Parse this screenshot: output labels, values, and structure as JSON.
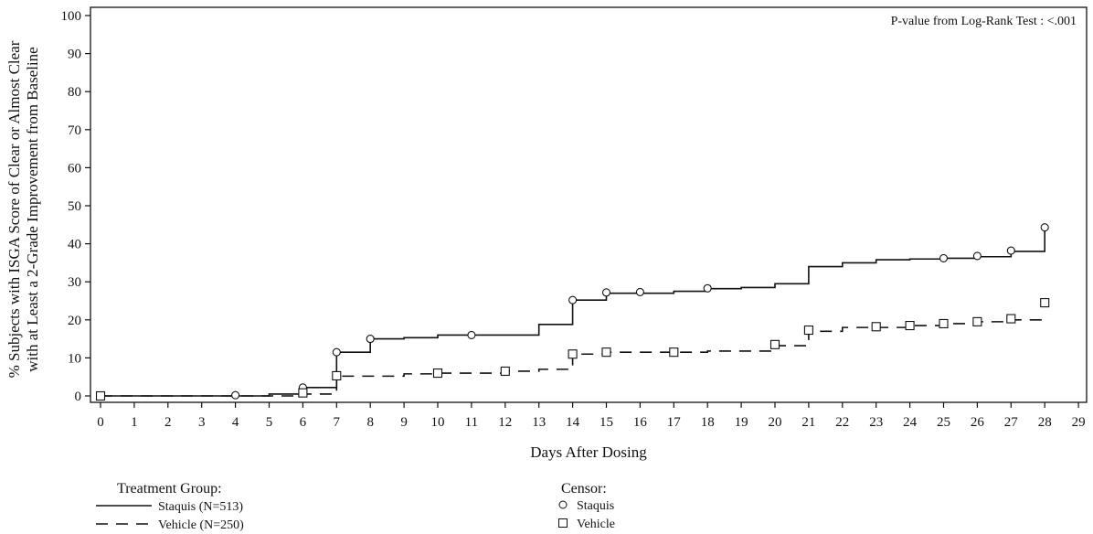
{
  "chart_data": {
    "type": "line",
    "step": true,
    "xlabel": "Days After Dosing",
    "ylabel_line1": "% Subjects with ISGA Score of Clear or Almost Clear",
    "ylabel_line2": "with at Least a 2-Grade Improvement from Baseline",
    "xlim": [
      0,
      29
    ],
    "ylim": [
      0,
      100
    ],
    "x_ticks": [
      0,
      1,
      2,
      3,
      4,
      5,
      6,
      7,
      8,
      9,
      10,
      11,
      12,
      13,
      14,
      15,
      16,
      17,
      18,
      19,
      20,
      21,
      22,
      23,
      24,
      25,
      26,
      27,
      28,
      29
    ],
    "x_tick_labels": [
      "0",
      "1",
      "2",
      "3",
      "4",
      "5",
      "6",
      "7",
      "8",
      "9",
      "10",
      "11",
      "12",
      "13",
      "14",
      "15",
      "16",
      "17",
      "18",
      "19",
      "20",
      "21",
      "22",
      "23",
      "24",
      "25",
      "26",
      "27",
      "28",
      "29"
    ],
    "y_ticks": [
      0,
      10,
      20,
      30,
      40,
      50,
      60,
      70,
      80,
      90,
      100
    ],
    "y_tick_labels": [
      "0",
      "10",
      "20",
      "30",
      "40",
      "50",
      "60",
      "70",
      "80",
      "90",
      "100"
    ],
    "annotation": "P-value from Log-Rank Test :  <.001",
    "series": [
      {
        "name": "Staquis (N=513)",
        "line_style": "solid",
        "color": "#111111",
        "steps": [
          [
            0,
            0
          ],
          [
            5,
            0.3
          ],
          [
            5,
            0.5
          ],
          [
            6,
            1.3
          ],
          [
            6,
            2.2
          ],
          [
            7,
            2.2
          ],
          [
            7,
            11.5
          ],
          [
            8,
            11.5
          ],
          [
            8,
            15.0
          ],
          [
            9,
            15.3
          ],
          [
            10,
            15.3
          ],
          [
            10,
            16.0
          ],
          [
            13,
            16.0
          ],
          [
            13,
            18.8
          ],
          [
            14,
            18.8
          ],
          [
            14,
            25.2
          ],
          [
            15,
            25.2
          ],
          [
            15,
            27.0
          ],
          [
            16,
            27.0
          ],
          [
            17,
            27.5
          ],
          [
            18,
            28.2
          ],
          [
            19,
            28.5
          ],
          [
            20,
            28.5
          ],
          [
            20,
            29.5
          ],
          [
            21,
            29.5
          ],
          [
            21,
            34.0
          ],
          [
            22,
            34.0
          ],
          [
            22,
            35.0
          ],
          [
            23,
            35.0
          ],
          [
            23,
            35.8
          ],
          [
            24,
            36.0
          ],
          [
            25,
            36.0
          ],
          [
            25,
            36.2
          ],
          [
            26,
            36.6
          ],
          [
            27,
            36.8
          ],
          [
            27,
            38.0
          ],
          [
            28,
            38.0
          ],
          [
            28,
            44.3
          ]
        ],
        "censor_marker": "circle",
        "censors": [
          [
            0,
            0
          ],
          [
            4,
            0.2
          ],
          [
            6,
            2.2
          ],
          [
            7,
            11.5
          ],
          [
            8,
            15.0
          ],
          [
            11,
            16.0
          ],
          [
            14,
            25.2
          ],
          [
            15,
            27.2
          ],
          [
            16,
            27.3
          ],
          [
            18,
            28.3
          ],
          [
            25,
            36.2
          ],
          [
            26,
            36.8
          ],
          [
            27,
            38.2
          ],
          [
            28,
            44.3
          ]
        ]
      },
      {
        "name": "Vehicle (N=250)",
        "line_style": "dashed",
        "color": "#111111",
        "steps": [
          [
            0,
            0
          ],
          [
            6,
            0.5
          ],
          [
            7,
            0.8
          ],
          [
            7,
            5.2
          ],
          [
            8,
            5.2
          ],
          [
            9,
            5.8
          ],
          [
            10,
            6.0
          ],
          [
            12,
            6.0
          ],
          [
            12,
            6.5
          ],
          [
            13,
            7.0
          ],
          [
            14,
            8.0
          ],
          [
            14,
            11.0
          ],
          [
            15,
            11.0
          ],
          [
            15,
            11.5
          ],
          [
            17,
            11.5
          ],
          [
            18,
            11.8
          ],
          [
            20,
            11.8
          ],
          [
            20,
            13.2
          ],
          [
            21,
            13.2
          ],
          [
            21,
            17.0
          ],
          [
            22,
            17.0
          ],
          [
            22,
            18.0
          ],
          [
            23,
            18.0
          ],
          [
            24,
            18.5
          ],
          [
            25,
            19.0
          ],
          [
            26,
            19.5
          ],
          [
            27,
            20.0
          ],
          [
            28,
            20.5
          ]
        ],
        "censor_marker": "square",
        "censors": [
          [
            0,
            0
          ],
          [
            6,
            0.8
          ],
          [
            7,
            5.3
          ],
          [
            10,
            6.0
          ],
          [
            12,
            6.5
          ],
          [
            14,
            11.0
          ],
          [
            15,
            11.5
          ],
          [
            17,
            11.5
          ],
          [
            20,
            13.5
          ],
          [
            21,
            17.3
          ],
          [
            23,
            18.2
          ],
          [
            24,
            18.5
          ],
          [
            25,
            19.0
          ],
          [
            26,
            19.5
          ],
          [
            27,
            20.3
          ],
          [
            28,
            24.5
          ]
        ]
      }
    ],
    "legend": {
      "treatment_title": "Treatment Group:",
      "treatment_items": [
        "Staquis (N=513)",
        "Vehicle (N=250)"
      ],
      "censor_title": "Censor:",
      "censor_items": [
        "Staquis",
        "Vehicle"
      ]
    }
  }
}
